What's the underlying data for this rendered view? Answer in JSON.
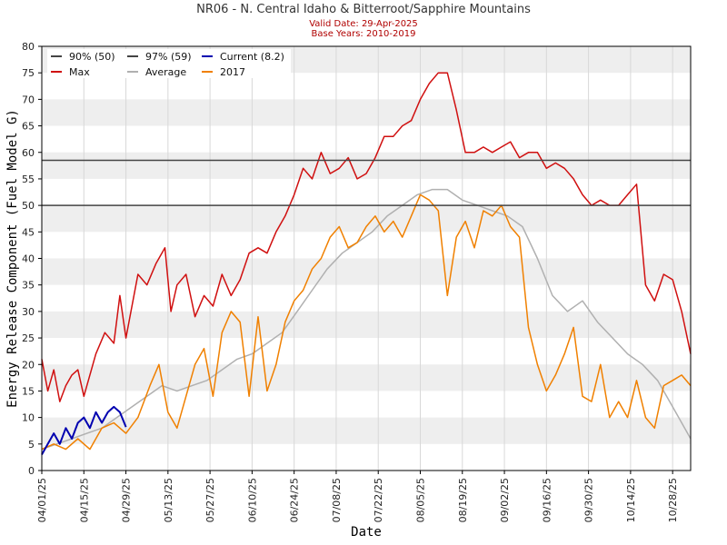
{
  "header": {
    "title": "NR06 - N. Central Idaho & Bitterroot/Sapphire Mountains",
    "valid_date": "Valid Date: 29-Apr-2025",
    "base_years": "Base Years: 2010-2019"
  },
  "colors": {
    "p90": "#444444",
    "p97": "#444444",
    "current": "#0000b0",
    "max": "#d01010",
    "average": "#b0b0b0",
    "y2017": "#f08000",
    "band": "#eeeeee"
  },
  "chart_data": {
    "type": "line",
    "xlabel": "Date",
    "ylabel": "Energy Release Component (Fuel Model G)",
    "ylim": [
      0,
      80
    ],
    "yticks": [
      0,
      5,
      10,
      15,
      20,
      25,
      30,
      35,
      40,
      45,
      50,
      55,
      60,
      65,
      70,
      75,
      80
    ],
    "x_range": [
      "04/01",
      "11/03"
    ],
    "xticks": [
      "04/01/25",
      "04/15/25",
      "04/29/25",
      "05/13/25",
      "05/27/25",
      "06/10/25",
      "06/24/25",
      "07/08/25",
      "07/22/25",
      "08/05/25",
      "08/19/25",
      "09/02/25",
      "09/16/25",
      "09/30/25",
      "10/14/25",
      "10/28/25"
    ],
    "grid": "horizontal bands",
    "legend": {
      "placement": "top-left",
      "entries": [
        "90% (50)",
        "97% (59)",
        "Current (8.2)",
        "Max",
        "Average",
        "2017"
      ]
    },
    "series": [
      {
        "name": "90% (50)",
        "kind": "hline",
        "value": 50
      },
      {
        "name": "97% (59)",
        "kind": "hline",
        "value": 58.5
      },
      {
        "name": "Max",
        "x": [
          "04/01",
          "04/03",
          "04/05",
          "04/07",
          "04/09",
          "04/11",
          "04/13",
          "04/15",
          "04/17",
          "04/19",
          "04/22",
          "04/25",
          "04/27",
          "04/29",
          "05/01",
          "05/03",
          "05/06",
          "05/09",
          "05/12",
          "05/14",
          "05/16",
          "05/19",
          "05/22",
          "05/25",
          "05/28",
          "05/31",
          "06/03",
          "06/06",
          "06/09",
          "06/12",
          "06/15",
          "06/18",
          "06/21",
          "06/24",
          "06/27",
          "06/30",
          "07/03",
          "07/06",
          "07/09",
          "07/12",
          "07/15",
          "07/18",
          "07/21",
          "07/24",
          "07/27",
          "07/30",
          "08/02",
          "08/05",
          "08/08",
          "08/11",
          "08/14",
          "08/17",
          "08/20",
          "08/23",
          "08/26",
          "08/29",
          "09/01",
          "09/04",
          "09/07",
          "09/10",
          "09/13",
          "09/16",
          "09/19",
          "09/22",
          "09/25",
          "09/28",
          "10/01",
          "10/04",
          "10/07",
          "10/10",
          "10/13",
          "10/16",
          "10/19",
          "10/22",
          "10/25",
          "10/28",
          "10/31",
          "11/03"
        ],
        "values": [
          21,
          15,
          19,
          13,
          16,
          18,
          19,
          14,
          18,
          22,
          26,
          24,
          33,
          25,
          31,
          37,
          35,
          39,
          42,
          30,
          35,
          37,
          29,
          33,
          31,
          37,
          33,
          36,
          41,
          42,
          41,
          45,
          48,
          52,
          57,
          55,
          60,
          56,
          57,
          59,
          55,
          56,
          59,
          63,
          63,
          65,
          66,
          70,
          73,
          75,
          75,
          68,
          60,
          60,
          61,
          60,
          61,
          62,
          59,
          60,
          60,
          57,
          58,
          57,
          55,
          52,
          50,
          51,
          50,
          50,
          52,
          54,
          35,
          32,
          37,
          36,
          30,
          22
        ]
      },
      {
        "name": "Average",
        "x": [
          "04/01",
          "04/06",
          "04/11",
          "04/16",
          "04/21",
          "04/26",
          "05/01",
          "05/06",
          "05/11",
          "05/16",
          "05/21",
          "05/26",
          "05/31",
          "06/05",
          "06/10",
          "06/15",
          "06/20",
          "06/25",
          "06/30",
          "07/05",
          "07/10",
          "07/15",
          "07/20",
          "07/25",
          "07/30",
          "08/04",
          "08/09",
          "08/14",
          "08/19",
          "08/24",
          "08/29",
          "09/03",
          "09/08",
          "09/13",
          "09/18",
          "09/23",
          "09/28",
          "10/03",
          "10/08",
          "10/13",
          "10/18",
          "10/23",
          "10/28",
          "11/03"
        ],
        "values": [
          4,
          5,
          6,
          7,
          8,
          10,
          12,
          14,
          16,
          15,
          16,
          17,
          19,
          21,
          22,
          24,
          26,
          30,
          34,
          38,
          41,
          43,
          45,
          48,
          50,
          52,
          53,
          53,
          51,
          50,
          49,
          48,
          46,
          40,
          33,
          30,
          32,
          28,
          25,
          22,
          20,
          17,
          12,
          6
        ]
      },
      {
        "name": "2017",
        "x": [
          "04/01",
          "04/05",
          "04/09",
          "04/13",
          "04/17",
          "04/21",
          "04/25",
          "04/29",
          "05/03",
          "05/07",
          "05/10",
          "05/13",
          "05/16",
          "05/19",
          "05/22",
          "05/25",
          "05/28",
          "05/31",
          "06/03",
          "06/06",
          "06/09",
          "06/12",
          "06/15",
          "06/18",
          "06/21",
          "06/24",
          "06/27",
          "06/30",
          "07/03",
          "07/06",
          "07/09",
          "07/12",
          "07/15",
          "07/18",
          "07/21",
          "07/24",
          "07/27",
          "07/30",
          "08/02",
          "08/05",
          "08/08",
          "08/11",
          "08/14",
          "08/17",
          "08/20",
          "08/23",
          "08/26",
          "08/29",
          "09/01",
          "09/04",
          "09/07",
          "09/10",
          "09/13",
          "09/16",
          "09/19",
          "09/22",
          "09/25",
          "09/28",
          "10/01",
          "10/04",
          "10/07",
          "10/10",
          "10/13",
          "10/16",
          "10/19",
          "10/22",
          "10/25",
          "10/28",
          "10/31",
          "11/03"
        ],
        "values": [
          4,
          5,
          4,
          6,
          4,
          8,
          9,
          7,
          10,
          16,
          20,
          11,
          8,
          14,
          20,
          23,
          14,
          26,
          30,
          28,
          14,
          29,
          15,
          20,
          28,
          32,
          34,
          38,
          40,
          44,
          46,
          42,
          43,
          46,
          48,
          45,
          47,
          44,
          48,
          52,
          51,
          49,
          33,
          44,
          47,
          42,
          49,
          48,
          50,
          46,
          44,
          27,
          20,
          15,
          18,
          22,
          27,
          14,
          13,
          20,
          10,
          13,
          10,
          17,
          10,
          8,
          16,
          17,
          18,
          16
        ]
      },
      {
        "name": "Current (8.2)",
        "x": [
          "04/01",
          "04/03",
          "04/05",
          "04/07",
          "04/09",
          "04/11",
          "04/13",
          "04/15",
          "04/17",
          "04/19",
          "04/21",
          "04/23",
          "04/25",
          "04/27",
          "04/29"
        ],
        "values": [
          3,
          5,
          7,
          5,
          8,
          6,
          9,
          10,
          8,
          11,
          9,
          11,
          12,
          11,
          8.2
        ]
      }
    ]
  }
}
